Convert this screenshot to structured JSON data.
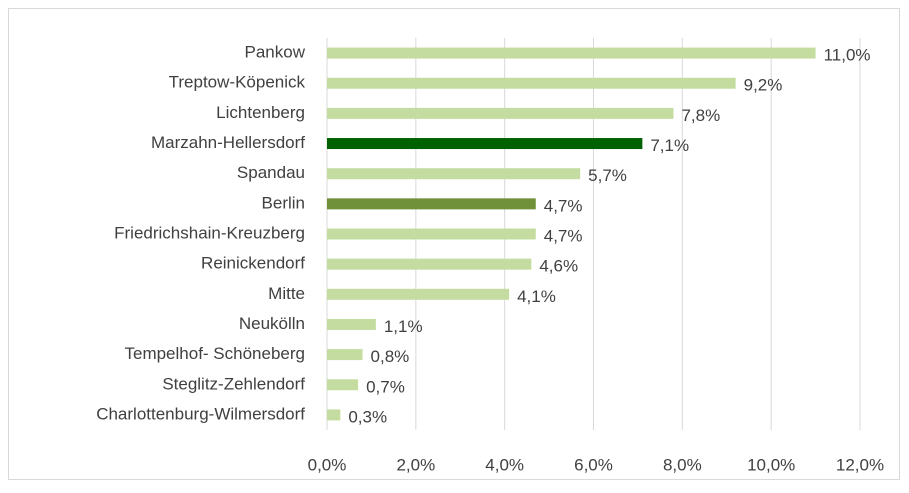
{
  "chart_data": {
    "type": "bar",
    "orientation": "horizontal",
    "categories": [
      "Pankow",
      "Treptow-Köpenick",
      "Lichtenberg",
      "Marzahn-Hellersdorf",
      "Spandau",
      "Berlin",
      "Friedrichshain-Kreuzberg",
      "Reinickendorf",
      "Mitte",
      "Neukölln",
      "Tempelhof- Schöneberg",
      "Steglitz-Zehlendorf",
      "Charlottenburg-Wilmersdorf"
    ],
    "values": [
      11.0,
      9.2,
      7.8,
      7.1,
      5.7,
      4.7,
      4.7,
      4.6,
      4.1,
      1.1,
      0.8,
      0.7,
      0.3
    ],
    "value_labels": [
      "11,0%",
      "9,2%",
      "7,8%",
      "7,1%",
      "5,7%",
      "4,7%",
      "4,7%",
      "4,6%",
      "4,1%",
      "1,1%",
      "0,8%",
      "0,7%",
      "0,3%"
    ],
    "colors": [
      "#c5dca0",
      "#c5dca0",
      "#c5dca0",
      "#006100",
      "#c5dca0",
      "#70913a",
      "#c5dca0",
      "#c5dca0",
      "#c5dca0",
      "#c5dca0",
      "#c5dca0",
      "#c5dca0",
      "#c5dca0"
    ],
    "xlim": [
      0,
      12
    ],
    "xticks": [
      {
        "value": 0,
        "label": "0,0%"
      },
      {
        "value": 2,
        "label": "2,0%"
      },
      {
        "value": 4,
        "label": "4,0%"
      },
      {
        "value": 6,
        "label": "6,0%"
      },
      {
        "value": 8,
        "label": "8,0%"
      },
      {
        "value": 10,
        "label": "10,0%"
      },
      {
        "value": 12,
        "label": "12,0%"
      }
    ],
    "grid": true
  }
}
